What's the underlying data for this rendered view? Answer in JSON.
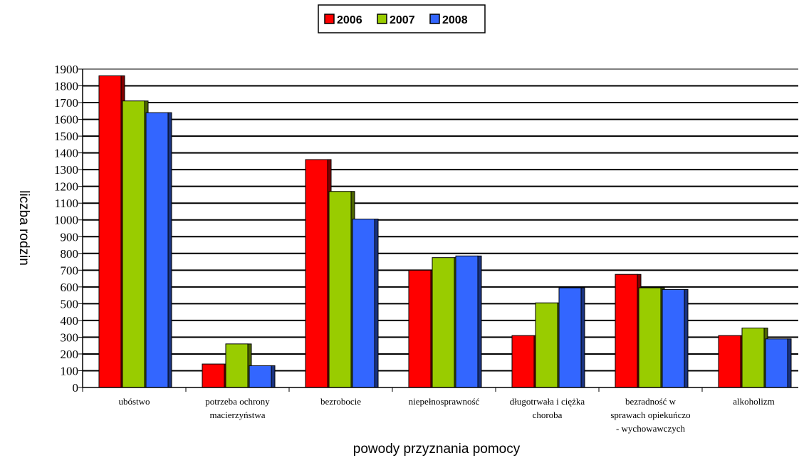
{
  "chart_data": {
    "type": "bar",
    "title": "",
    "xlabel": "powody przyznania pomocy",
    "ylabel": "liczba rodzin",
    "ylim": [
      0,
      1900
    ],
    "y_ticks": [
      0,
      100,
      200,
      300,
      400,
      500,
      600,
      700,
      800,
      900,
      1000,
      1100,
      1200,
      1300,
      1400,
      1500,
      1600,
      1700,
      1800,
      1900
    ],
    "grid": true,
    "legend_position": "top-center",
    "categories": [
      [
        "ubóstwo"
      ],
      [
        "potrzeba ochrony",
        "macierzyństwa"
      ],
      [
        "bezrobocie"
      ],
      [
        "niepełnosprawność"
      ],
      [
        "długotrwała i ciężka",
        "choroba"
      ],
      [
        "bezradność w",
        "sprawach opiekuńczo",
        "- wychowawczych"
      ],
      [
        "alkoholizm"
      ]
    ],
    "series": [
      {
        "name": "2006",
        "color": "#ff0000",
        "side_color": "#800000",
        "values": [
          1860,
          140,
          1360,
          700,
          310,
          675,
          310
        ]
      },
      {
        "name": "2007",
        "color": "#99cc00",
        "side_color": "#4d6600",
        "values": [
          1710,
          260,
          1170,
          775,
          505,
          595,
          355
        ]
      },
      {
        "name": "2008",
        "color": "#3366ff",
        "side_color": "#1a3380",
        "values": [
          1640,
          130,
          1005,
          785,
          595,
          585,
          290
        ]
      }
    ]
  }
}
